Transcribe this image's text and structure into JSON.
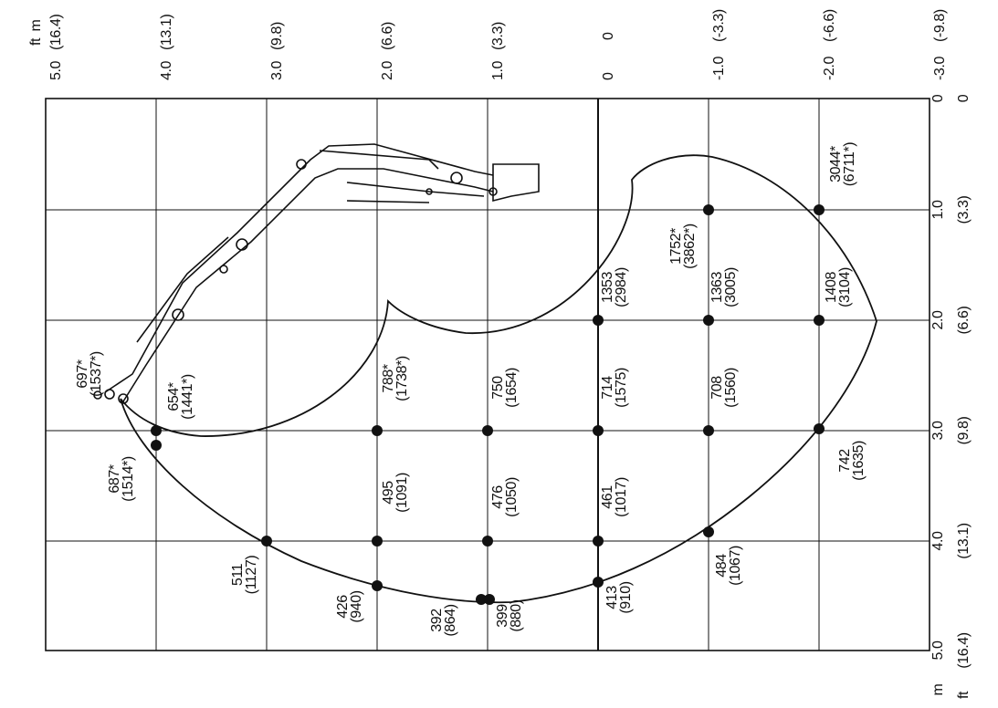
{
  "units": {
    "m": "m",
    "ft": "ft"
  },
  "top_axis": [
    {
      "m": "5.0",
      "ft": "(16.4)"
    },
    {
      "m": "4.0",
      "ft": "(13.1)"
    },
    {
      "m": "3.0",
      "ft": "(9.8)"
    },
    {
      "m": "2.0",
      "ft": "(6.6)"
    },
    {
      "m": "1.0",
      "ft": "(3.3)"
    },
    {
      "m": "0",
      "ft": "0"
    },
    {
      "m": "-1.0",
      "ft": "(-3.3)"
    },
    {
      "m": "-2.0",
      "ft": "(-6.6)"
    },
    {
      "m": "-3.0",
      "ft": "(-9.8)"
    }
  ],
  "right_axis": [
    {
      "m": "0",
      "ft": "0"
    },
    {
      "m": "1.0",
      "ft": "(3.3)"
    },
    {
      "m": "2.0",
      "ft": "(6.6)"
    },
    {
      "m": "3.0",
      "ft": "(9.8)"
    },
    {
      "m": "4.0",
      "ft": "(13.1)"
    },
    {
      "m": "5.0",
      "ft": "(16.4)"
    }
  ],
  "loads": [
    {
      "kg": "697*",
      "lb": "(1537*)"
    },
    {
      "kg": "654*",
      "lb": "(1441*)"
    },
    {
      "kg": "687*",
      "lb": "(1514*)"
    },
    {
      "kg": "511",
      "lb": "(1127)"
    },
    {
      "kg": "426",
      "lb": "(940)"
    },
    {
      "kg": "392",
      "lb": "(864)"
    },
    {
      "kg": "399",
      "lb": "(880)"
    },
    {
      "kg": "413",
      "lb": "(910)"
    },
    {
      "kg": "484",
      "lb": "(1067)"
    },
    {
      "kg": "742",
      "lb": "(1635)"
    },
    {
      "kg": "495",
      "lb": "(1091)"
    },
    {
      "kg": "476",
      "lb": "(1050)"
    },
    {
      "kg": "461",
      "lb": "(1017)"
    },
    {
      "kg": "788*",
      "lb": "(1738*)"
    },
    {
      "kg": "750",
      "lb": "(1654)"
    },
    {
      "kg": "714",
      "lb": "(1575)"
    },
    {
      "kg": "708",
      "lb": "(1560)"
    },
    {
      "kg": "1353",
      "lb": "(2984)"
    },
    {
      "kg": "1363",
      "lb": "(3005)"
    },
    {
      "kg": "1408",
      "lb": "(3104)"
    },
    {
      "kg": "1752*",
      "lb": "(3862*)"
    },
    {
      "kg": "3044*",
      "lb": "(6711*)"
    }
  ]
}
